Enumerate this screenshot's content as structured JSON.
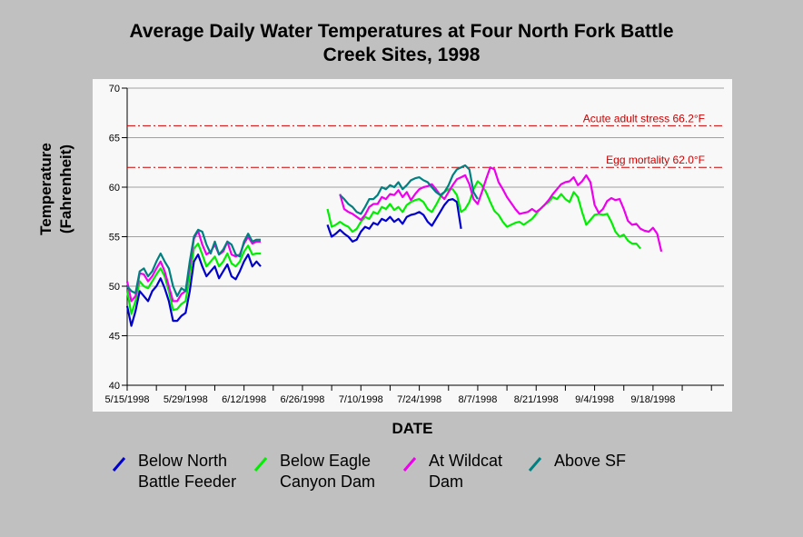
{
  "chart_data": {
    "type": "line",
    "title_lines": [
      "Average Daily Water Temperatures at Four North Fork Battle",
      "Creek Sites, 1998"
    ],
    "xlabel": "DATE",
    "ylabel_lines": [
      "Temperature",
      "(Fahrenheit)"
    ],
    "ylim": [
      40,
      70
    ],
    "yticks": [
      40,
      45,
      50,
      55,
      60,
      65,
      70
    ],
    "xlim": [
      "1998-05-15",
      "1998-10-05"
    ],
    "xticks": [
      "5/15/1998",
      "5/29/1998",
      "6/12/1998",
      "6/26/1998",
      "7/10/1998",
      "7/24/1998",
      "8/7/1998",
      "8/21/1998",
      "9/4/1998",
      "9/18/1998"
    ],
    "grid": true,
    "legend_position": "bottom",
    "reference_lines": [
      {
        "label": "Acute adult stress 66.2°F",
        "value": 66.2,
        "color": "#cc0000"
      },
      {
        "label": "Egg mortality 62.0°F",
        "value": 62.0,
        "color": "#cc0000"
      }
    ],
    "series": [
      {
        "name": "Below North Battle Feeder",
        "color": "#0000cc",
        "segments": [
          {
            "start": "1998-05-15",
            "values": [
              48,
              46,
              47.5,
              49.5,
              49,
              48.5,
              49.5,
              50,
              50.8,
              49.8,
              48.5,
              46.5,
              46.5,
              47,
              47.3,
              49.5,
              52.5,
              53.2,
              52,
              51,
              51.5,
              52,
              50.8,
              51.5,
              52.2,
              51,
              50.7,
              51.5,
              52.5,
              53.2,
              52,
              52.5,
              52
            ]
          },
          {
            "start": "1998-07-02",
            "values": [
              56.2,
              55,
              55.3,
              55.7,
              55.3,
              55,
              54.5,
              54.7,
              55.5,
              56,
              55.8,
              56.4,
              56.2,
              56.8,
              56.6,
              57,
              56.5,
              56.8,
              56.3,
              57,
              57.2,
              57.3,
              57.5,
              57.2,
              56.5,
              56.1,
              56.8,
              57.5,
              58.2,
              58.7,
              58.8,
              58.5,
              55.8
            ]
          }
        ]
      },
      {
        "name": "Below Eagle Canyon Dam",
        "color": "#00ee00",
        "segments": [
          {
            "start": "1998-05-15",
            "values": [
              49.5,
              47.2,
              48.5,
              50.5,
              50,
              49.8,
              50.5,
              51.2,
              51.8,
              51,
              49.5,
              47.6,
              47.7,
              48.2,
              48.5,
              51,
              53.8,
              54.3,
              53.2,
              52,
              52.5,
              53,
              52,
              52.5,
              53.3,
              52.3,
              52,
              52.5,
              53.5,
              54.1,
              53.2,
              53.3,
              53.3
            ]
          },
          {
            "start": "1998-07-02",
            "values": [
              57.8,
              56,
              56.2,
              56.5,
              56.2,
              56,
              55.5,
              55.8,
              56.5,
              57,
              56.8,
              57.5,
              57.3,
              58,
              57.8,
              58.3,
              57.7,
              58,
              57.5,
              58.2,
              58.5,
              58.7,
              58.8,
              58.5,
              57.8,
              57.5,
              58.2,
              59,
              59.5,
              59.8,
              59.8,
              59.2,
              57.5,
              57.8,
              58.5,
              59.8,
              60.6,
              60.2,
              59.5,
              58.5,
              57.6,
              57.2,
              56.5,
              56,
              56.2,
              56.4,
              56.5,
              56.2,
              56.5,
              56.8,
              57.3,
              57.8,
              58.2,
              58.5,
              59,
              58.8,
              59.3,
              58.8,
              58.5,
              59.5,
              59,
              57.5,
              56.2,
              56.7,
              57.2,
              57.3,
              57.2,
              57.3,
              56.5,
              55.5,
              55,
              55.2,
              54.6,
              54.3,
              54.3,
              53.8
            ]
          }
        ]
      },
      {
        "name": "At Wildcat Dam",
        "color": "#ee00ee",
        "segments": [
          {
            "start": "1998-05-15",
            "values": [
              50.5,
              48.5,
              49,
              51.3,
              51.2,
              50.5,
              51,
              51.8,
              52.5,
              51.5,
              50,
              48.5,
              48.5,
              49.2,
              49.5,
              52,
              54.8,
              55.6,
              54.2,
              53.2,
              53.5,
              54.2,
              53.2,
              53.5,
              54.5,
              53.2,
              53,
              53.2,
              54.3,
              55,
              54.3,
              54.5,
              54.5
            ]
          },
          {
            "start": "1998-07-05",
            "values": [
              59.3,
              57.8,
              57.5,
              57.3,
              57,
              56.7,
              57.2,
              58,
              58.3,
              58.3,
              59,
              58.8,
              59.3,
              59.2,
              59.7,
              59,
              59.5,
              58.7,
              59.3,
              59.8,
              60,
              60.1,
              60.3,
              59.8,
              59.2,
              58.8,
              59.5,
              60.2,
              60.8,
              61,
              61.2,
              60.3,
              58.8,
              58.3,
              59.5,
              60.8,
              62,
              61.8,
              60.5,
              59.8,
              59,
              58.4,
              57.8,
              57.3,
              57.4,
              57.5,
              57.8,
              57.5,
              57.8,
              58.2,
              58.7,
              59.3,
              59.8,
              60.3,
              60.5,
              60.6,
              61,
              60.2,
              60.6,
              61.2,
              60.5,
              58.2,
              57.4,
              57.8,
              58.6,
              58.9,
              58.7,
              58.8,
              57.8,
              56.6,
              56.2,
              56.3,
              55.8,
              55.6,
              55.5,
              55.9,
              55.3,
              53.5
            ]
          }
        ]
      },
      {
        "name": "Above SF",
        "color": "#008080",
        "segments": [
          {
            "start": "1998-05-15",
            "values": [
              50,
              49.5,
              49.3,
              51.5,
              51.8,
              51,
              51.5,
              52.5,
              53.3,
              52.5,
              51.8,
              50,
              49,
              49.8,
              49.5,
              52.5,
              55,
              55.7,
              55.5,
              54.2,
              53.3,
              54.5,
              53.2,
              53.7,
              54.5,
              54.2,
              53.2,
              53,
              54.5,
              55.3,
              54.5,
              54.7,
              54.7
            ]
          },
          {
            "start": "1998-07-05",
            "values": [
              59.2,
              58.8,
              58.3,
              58,
              57.5,
              57.3,
              58,
              58.8,
              58.8,
              59.2,
              60,
              59.8,
              60.2,
              60,
              60.5,
              59.8,
              60.2,
              60.7,
              60.9,
              61,
              60.7,
              60.5,
              60,
              59.5,
              59.2,
              59.5,
              60.2,
              61.2,
              61.8,
              62,
              62.2,
              61.8,
              59.5,
              58.8
            ]
          }
        ]
      }
    ]
  }
}
